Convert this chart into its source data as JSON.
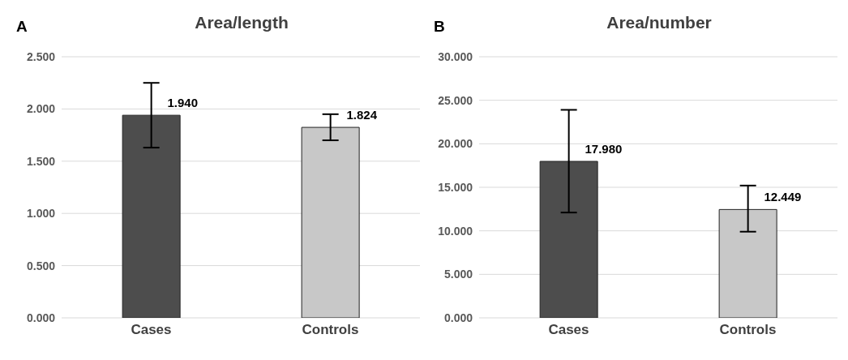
{
  "chart_data": [
    {
      "type": "bar",
      "title": "Area/length",
      "annotations": [
        "A"
      ],
      "categories": [
        "Cases",
        "Controls"
      ],
      "values": [
        1.94,
        1.824
      ],
      "colors": [
        "#4d4d4d",
        "#c8c8c8"
      ],
      "value_labels": [
        "1.940",
        "1.824"
      ],
      "errors": [
        [
          1.63,
          2.25
        ],
        [
          1.7,
          1.95
        ]
      ],
      "ylim": [
        0,
        2.5
      ],
      "yticks": [
        {
          "value": 0,
          "label": "0.000"
        },
        {
          "value": 0.5,
          "label": "0.500"
        },
        {
          "value": 1,
          "label": "1.000"
        },
        {
          "value": 1.5,
          "label": "1.500"
        },
        {
          "value": 2,
          "label": "2.000"
        },
        {
          "value": 2.5,
          "label": "2.500"
        }
      ],
      "grid": "y"
    },
    {
      "type": "bar",
      "title": "Area/number",
      "annotations": [
        "B"
      ],
      "categories": [
        "Cases",
        "Controls"
      ],
      "values": [
        17.98,
        12.449
      ],
      "colors": [
        "#4d4d4d",
        "#c8c8c8"
      ],
      "value_labels": [
        "17.980",
        "12.449"
      ],
      "errors": [
        [
          12.1,
          23.9
        ],
        [
          9.9,
          15.2
        ]
      ],
      "ylim": [
        0,
        30
      ],
      "yticks": [
        {
          "value": 0,
          "label": "0.000"
        },
        {
          "value": 5,
          "label": "5.000"
        },
        {
          "value": 10,
          "label": "10.000"
        },
        {
          "value": 15,
          "label": "15.000"
        },
        {
          "value": 20,
          "label": "20.000"
        },
        {
          "value": 25,
          "label": "25.000"
        },
        {
          "value": 30,
          "label": "30.000"
        }
      ],
      "grid": "y"
    }
  ]
}
